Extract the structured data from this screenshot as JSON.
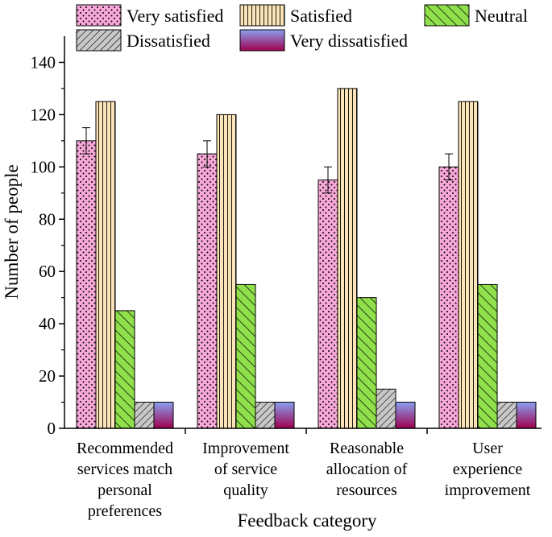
{
  "chart_data": {
    "type": "bar",
    "title": "",
    "xlabel": "Feedback category",
    "ylabel": "Number of people",
    "ylim": [
      0,
      150
    ],
    "yticks": [
      0,
      20,
      40,
      60,
      80,
      100,
      120,
      140
    ],
    "categories": [
      [
        "Recommended",
        "services match",
        "personal",
        "preferences"
      ],
      [
        "Improvement",
        "of service",
        "quality"
      ],
      [
        "Reasonable",
        "allocation of",
        "resources"
      ],
      [
        "User",
        "experience",
        "improvement"
      ]
    ],
    "legend_position": "top",
    "series": [
      {
        "name": "Very satisfied",
        "values": [
          110,
          105,
          95,
          100
        ],
        "errors": [
          5,
          5,
          5,
          5
        ],
        "color": "#f7a8d8",
        "pattern": "dots"
      },
      {
        "name": "Satisfied",
        "values": [
          125,
          120,
          130,
          125
        ],
        "color": "#fbe5b8",
        "pattern": "vertical-lines"
      },
      {
        "name": "Neutral",
        "values": [
          45,
          55,
          50,
          55
        ],
        "color": "#8fe04a",
        "pattern": "diagonal-lines"
      },
      {
        "name": "Dissatisfied",
        "values": [
          10,
          10,
          15,
          10
        ],
        "color": "#c8c8c8",
        "pattern": "reverse-diagonal-lines"
      },
      {
        "name": "Very dissatisfied",
        "values": [
          10,
          10,
          10,
          10
        ],
        "color_top": "#8aa0f0",
        "color_bottom": "#a00050",
        "pattern": "gradient"
      }
    ]
  }
}
